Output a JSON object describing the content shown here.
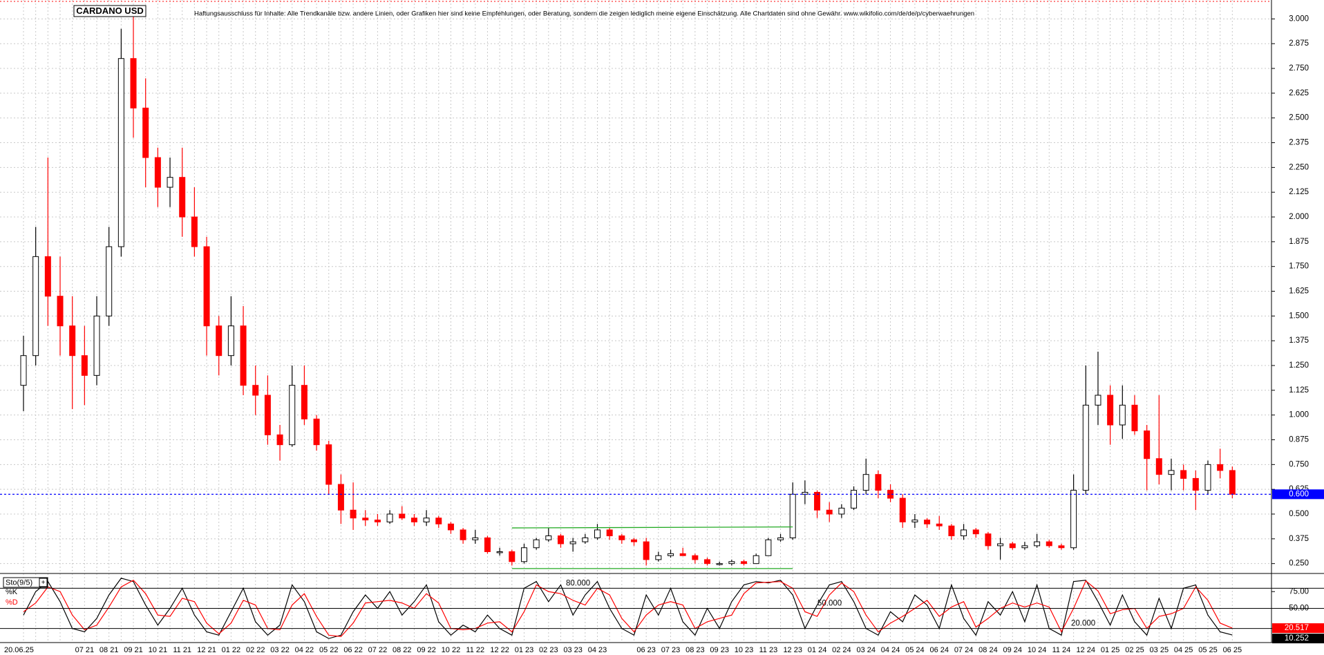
{
  "chart_data": [
    {
      "type": "candlestick",
      "title": "CARDANO USD",
      "note": "Haftungsausschluss für Inhalte: Alle Trendkanäle bzw. andere Linien, oder Grafiken hier sind keine Empfehlungen, oder Beratung, sondern die zeigen lediglich meine eigene Einschätzung. Alle Chartdaten sind ohne Gewähr.  www.wikifolio.com/de/de/p/cyberwaehrungen",
      "categories": [
        "20.06.25",
        null,
        null,
        null,
        null,
        "07 21",
        null,
        "08 21",
        null,
        "09 21",
        null,
        "10 21",
        null,
        "11 21",
        null,
        "12 21",
        null,
        "01 22",
        null,
        "02 22",
        null,
        "03 22",
        null,
        "04 22",
        null,
        "05 22",
        null,
        "06 22",
        null,
        "07 22",
        null,
        "08 22",
        null,
        "09 22",
        null,
        "10 22",
        null,
        "11 22",
        null,
        "12 22",
        null,
        "01 23",
        null,
        "02 23",
        null,
        "03 23",
        null,
        "04 23",
        null,
        null,
        null,
        "06 23",
        null,
        "07 23",
        null,
        "08 23",
        null,
        "09 23",
        null,
        "10 23",
        null,
        "11 23",
        null,
        "12 23",
        null,
        "01 24",
        null,
        "02 24",
        null,
        "03 24",
        null,
        "04 24",
        null,
        "05 24",
        null,
        "06 24",
        null,
        "07 24",
        null,
        "08 24",
        null,
        "09 24",
        null,
        "10 24",
        null,
        "11 24",
        null,
        "12 24",
        null,
        "01 25",
        null,
        "02 25",
        null,
        "03 25",
        null,
        "04 25",
        null,
        "05 25",
        null,
        "06 25"
      ],
      "open": [
        1.15,
        1.3,
        1.8,
        1.6,
        1.45,
        1.3,
        1.2,
        1.5,
        1.85,
        2.8,
        2.55,
        2.3,
        2.15,
        2.2,
        2.0,
        1.85,
        1.45,
        1.3,
        1.45,
        1.15,
        1.1,
        0.9,
        0.85,
        1.15,
        0.98,
        0.85,
        0.65,
        0.52,
        0.48,
        0.47,
        0.46,
        0.5,
        0.48,
        0.46,
        0.48,
        0.45,
        0.42,
        0.37,
        0.38,
        0.31,
        0.31,
        0.26,
        0.33,
        0.37,
        0.39,
        0.35,
        0.36,
        0.38,
        0.42,
        0.39,
        0.37,
        0.36,
        0.27,
        0.29,
        0.3,
        0.29,
        0.27,
        0.25,
        0.25,
        0.26,
        0.25,
        0.29,
        0.37,
        0.38,
        0.6,
        0.61,
        0.52,
        0.5,
        0.53,
        0.62,
        0.7,
        0.62,
        0.58,
        0.46,
        0.47,
        0.45,
        0.44,
        0.39,
        0.42,
        0.4,
        0.34,
        0.35,
        0.33,
        0.34,
        0.36,
        0.34,
        0.33,
        0.62,
        1.05,
        1.1,
        0.95,
        1.05,
        0.92,
        0.78,
        0.7,
        0.72,
        0.68,
        0.62,
        0.75,
        0.72
      ],
      "high": [
        1.4,
        1.95,
        2.3,
        1.8,
        1.6,
        1.45,
        1.6,
        1.95,
        2.95,
        3.06,
        2.7,
        2.35,
        2.3,
        2.35,
        2.15,
        1.9,
        1.5,
        1.6,
        1.55,
        1.25,
        1.2,
        0.95,
        1.25,
        1.25,
        1.0,
        0.87,
        0.7,
        0.66,
        0.52,
        0.5,
        0.52,
        0.54,
        0.5,
        0.52,
        0.49,
        0.46,
        0.43,
        0.42,
        0.39,
        0.33,
        0.32,
        0.35,
        0.38,
        0.43,
        0.4,
        0.38,
        0.4,
        0.45,
        0.43,
        0.4,
        0.38,
        0.38,
        0.31,
        0.32,
        0.33,
        0.3,
        0.28,
        0.26,
        0.27,
        0.27,
        0.3,
        0.38,
        0.4,
        0.66,
        0.67,
        0.62,
        0.56,
        0.55,
        0.64,
        0.78,
        0.72,
        0.65,
        0.6,
        0.5,
        0.48,
        0.49,
        0.45,
        0.45,
        0.43,
        0.41,
        0.38,
        0.36,
        0.36,
        0.4,
        0.37,
        0.35,
        0.7,
        1.25,
        1.32,
        1.15,
        1.15,
        1.1,
        0.95,
        1.1,
        0.78,
        0.75,
        0.72,
        0.77,
        0.83,
        0.74
      ],
      "low": [
        1.02,
        1.25,
        1.45,
        1.3,
        1.03,
        1.05,
        1.15,
        1.45,
        1.8,
        2.4,
        2.15,
        2.05,
        2.05,
        1.9,
        1.8,
        1.3,
        1.2,
        1.25,
        1.1,
        1.0,
        0.85,
        0.77,
        0.84,
        0.95,
        0.82,
        0.6,
        0.45,
        0.42,
        0.44,
        0.44,
        0.45,
        0.47,
        0.44,
        0.44,
        0.43,
        0.4,
        0.35,
        0.35,
        0.3,
        0.29,
        0.24,
        0.25,
        0.32,
        0.36,
        0.33,
        0.31,
        0.35,
        0.37,
        0.37,
        0.35,
        0.34,
        0.24,
        0.26,
        0.28,
        0.29,
        0.25,
        0.24,
        0.24,
        0.24,
        0.24,
        0.25,
        0.29,
        0.36,
        0.37,
        0.55,
        0.48,
        0.46,
        0.48,
        0.52,
        0.6,
        0.58,
        0.56,
        0.43,
        0.43,
        0.43,
        0.42,
        0.37,
        0.37,
        0.38,
        0.32,
        0.27,
        0.32,
        0.32,
        0.33,
        0.33,
        0.32,
        0.32,
        0.6,
        0.95,
        0.85,
        0.88,
        0.9,
        0.62,
        0.65,
        0.62,
        0.62,
        0.52,
        0.6,
        0.68,
        0.58
      ],
      "close": [
        1.3,
        1.8,
        1.6,
        1.45,
        1.3,
        1.2,
        1.5,
        1.85,
        2.8,
        2.55,
        2.3,
        2.15,
        2.2,
        2.0,
        1.85,
        1.45,
        1.3,
        1.45,
        1.15,
        1.1,
        0.9,
        0.85,
        1.15,
        0.98,
        0.85,
        0.65,
        0.52,
        0.48,
        0.47,
        0.46,
        0.5,
        0.48,
        0.46,
        0.48,
        0.45,
        0.42,
        0.37,
        0.38,
        0.31,
        0.31,
        0.26,
        0.33,
        0.37,
        0.39,
        0.35,
        0.36,
        0.38,
        0.42,
        0.39,
        0.37,
        0.36,
        0.27,
        0.29,
        0.3,
        0.29,
        0.27,
        0.25,
        0.25,
        0.26,
        0.25,
        0.29,
        0.37,
        0.38,
        0.6,
        0.61,
        0.52,
        0.5,
        0.53,
        0.62,
        0.7,
        0.62,
        0.58,
        0.46,
        0.47,
        0.45,
        0.44,
        0.39,
        0.42,
        0.4,
        0.34,
        0.35,
        0.33,
        0.34,
        0.36,
        0.34,
        0.33,
        0.62,
        1.05,
        1.1,
        0.95,
        1.05,
        0.92,
        0.78,
        0.7,
        0.72,
        0.68,
        0.62,
        0.75,
        0.72,
        0.6
      ],
      "up_color": "#ffffff",
      "down_color": "#ff0000",
      "ylim": [
        0.207,
        3.085
      ],
      "yticks": [
        {
          "value": 0.25,
          "label": "0.250"
        },
        {
          "value": 0.375,
          "label": "0.375"
        },
        {
          "value": 0.5,
          "label": "0.500"
        },
        {
          "value": 0.625,
          "label": "0.625"
        },
        {
          "value": 0.75,
          "label": "0.750"
        },
        {
          "value": 0.875,
          "label": "0.875"
        },
        {
          "value": 1,
          "label": "1.000"
        },
        {
          "value": 1.125,
          "label": "1.125"
        },
        {
          "value": 1.25,
          "label": "1.250"
        },
        {
          "value": 1.375,
          "label": "1.375"
        },
        {
          "value": 1.5,
          "label": "1.500"
        },
        {
          "value": 1.625,
          "label": "1.625"
        },
        {
          "value": 1.75,
          "label": "1.750"
        },
        {
          "value": 1.875,
          "label": "1.875"
        },
        {
          "value": 2,
          "label": "2.000"
        },
        {
          "value": 2.125,
          "label": "2.125"
        },
        {
          "value": 2.25,
          "label": "2.250"
        },
        {
          "value": 2.375,
          "label": "2.375"
        },
        {
          "value": 2.5,
          "label": "2.500"
        },
        {
          "value": 2.625,
          "label": "2.625"
        },
        {
          "value": 2.75,
          "label": "2.750"
        },
        {
          "value": 2.875,
          "label": "2.875"
        },
        {
          "value": 3,
          "label": "3.000"
        }
      ],
      "grid": true,
      "hline": {
        "value": 0.6,
        "label": "0.600",
        "color": "#0000ff"
      },
      "trendlines": [
        {
          "x": [
            40,
            63
          ],
          "y": [
            0.43,
            0.435
          ],
          "color": "#22aa22"
        },
        {
          "x": [
            40,
            63
          ],
          "y": [
            0.225,
            0.225
          ],
          "color": "#22aa22"
        }
      ]
    },
    {
      "type": "line",
      "title": "Sto(9/5)",
      "series": [
        {
          "name": "%K",
          "color": "#000000",
          "values": [
            40,
            75,
            90,
            60,
            20,
            15,
            35,
            70,
            95,
            90,
            55,
            25,
            50,
            80,
            40,
            15,
            10,
            45,
            80,
            30,
            10,
            25,
            85,
            60,
            15,
            5,
            10,
            45,
            70,
            50,
            75,
            40,
            60,
            85,
            30,
            10,
            25,
            15,
            40,
            20,
            10,
            80,
            90,
            60,
            85,
            40,
            70,
            90,
            50,
            20,
            10,
            70,
            40,
            80,
            30,
            10,
            50,
            20,
            60,
            85,
            90,
            88,
            92,
            70,
            20,
            55,
            85,
            90,
            60,
            20,
            10,
            45,
            30,
            70,
            55,
            20,
            85,
            35,
            10,
            60,
            40,
            75,
            30,
            85,
            20,
            10,
            90,
            92,
            60,
            25,
            70,
            30,
            10,
            65,
            20,
            80,
            85,
            40,
            15,
            10.252
          ]
        },
        {
          "name": "%D",
          "color": "#ff0000",
          "values": [
            45,
            58,
            82,
            75,
            40,
            18,
            25,
            52,
            82,
            92,
            72,
            40,
            38,
            65,
            60,
            28,
            12,
            28,
            62,
            55,
            20,
            18,
            55,
            72,
            38,
            10,
            8,
            28,
            58,
            60,
            62,
            58,
            50,
            72,
            58,
            20,
            18,
            20,
            28,
            30,
            15,
            45,
            85,
            75,
            72,
            62,
            55,
            80,
            70,
            35,
            15,
            40,
            55,
            60,
            55,
            20,
            30,
            35,
            40,
            72,
            88,
            89,
            90,
            80,
            45,
            38,
            70,
            88,
            75,
            40,
            15,
            28,
            38,
            50,
            62,
            38,
            52,
            60,
            22,
            35,
            50,
            58,
            52,
            58,
            52,
            15,
            50,
            91,
            76,
            42,
            48,
            50,
            20,
            38,
            42,
            50,
            82,
            62,
            28,
            20.517
          ]
        }
      ],
      "ylim": [
        0,
        100
      ],
      "yticks": [
        {
          "value": 75,
          "label": "75.00"
        },
        {
          "value": 50,
          "label": "50.00"
        }
      ],
      "levels": [
        {
          "value": 80,
          "label": "80.000"
        },
        {
          "value": 50,
          "label": "50.000"
        },
        {
          "value": 20,
          "label": "20.000"
        }
      ]
    }
  ]
}
